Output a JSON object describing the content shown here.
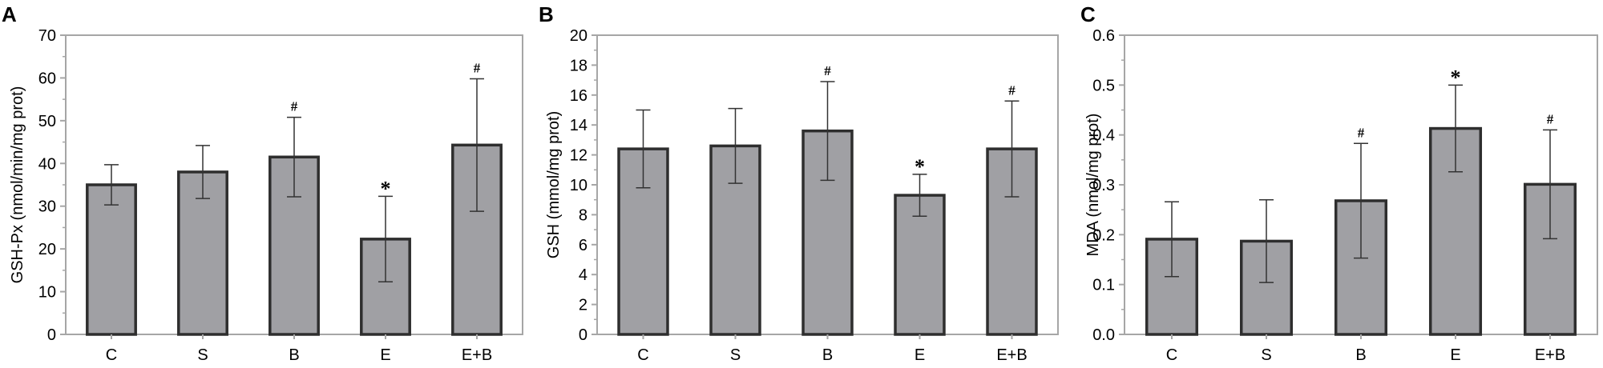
{
  "chart_data": [
    {
      "panel": "A",
      "type": "bar",
      "categories": [
        "C",
        "S",
        "B",
        "E",
        "E+B"
      ],
      "values": [
        35,
        38,
        41.5,
        22.3,
        44.3
      ],
      "errors": [
        4.7,
        6.2,
        9.3,
        10.0,
        15.5
      ],
      "annotations": [
        "",
        "",
        "#",
        "*",
        "#"
      ],
      "ylabel": "GSH-Px (nmol/min/mg prot)",
      "ylim": [
        0,
        70
      ],
      "yticks": [
        0,
        10,
        20,
        30,
        40,
        50,
        60,
        70
      ],
      "ytick_labels": [
        "0",
        "10",
        "20",
        "30",
        "40",
        "50",
        "60",
        "70"
      ]
    },
    {
      "panel": "B",
      "type": "bar",
      "categories": [
        "C",
        "S",
        "B",
        "E",
        "E+B"
      ],
      "values": [
        12.4,
        12.6,
        13.6,
        9.3,
        12.4
      ],
      "errors": [
        2.6,
        2.5,
        3.3,
        1.4,
        3.2
      ],
      "annotations": [
        "",
        "",
        "#",
        "*",
        "#"
      ],
      "ylabel": "GSH (mmol/mg prot)",
      "ylim": [
        0,
        20
      ],
      "yticks": [
        0,
        2,
        4,
        6,
        8,
        10,
        12,
        14,
        16,
        18,
        20
      ],
      "ytick_labels": [
        "0",
        "2",
        "4",
        "6",
        "8",
        "10",
        "12",
        "14",
        "16",
        "18",
        "20"
      ]
    },
    {
      "panel": "C",
      "type": "bar",
      "categories": [
        "C",
        "S",
        "B",
        "E",
        "E+B"
      ],
      "values": [
        0.191,
        0.187,
        0.268,
        0.413,
        0.301
      ],
      "errors": [
        0.075,
        0.083,
        0.115,
        0.087,
        0.109
      ],
      "annotations": [
        "",
        "",
        "#",
        "*",
        "#"
      ],
      "ylabel": "MDA (nmol/mg prot)",
      "ylim": [
        0,
        0.6
      ],
      "yticks": [
        0,
        0.1,
        0.2,
        0.3,
        0.4,
        0.5,
        0.6
      ],
      "ytick_labels": [
        "0.0",
        "0.1",
        "0.2",
        "0.3",
        "0.4",
        "0.5",
        "0.6"
      ]
    }
  ],
  "colors": {
    "bar_fill": "#a0a0a4",
    "bar_stroke": "#2e2e2e",
    "frame": "#a6a6a6",
    "error": "#333333"
  }
}
